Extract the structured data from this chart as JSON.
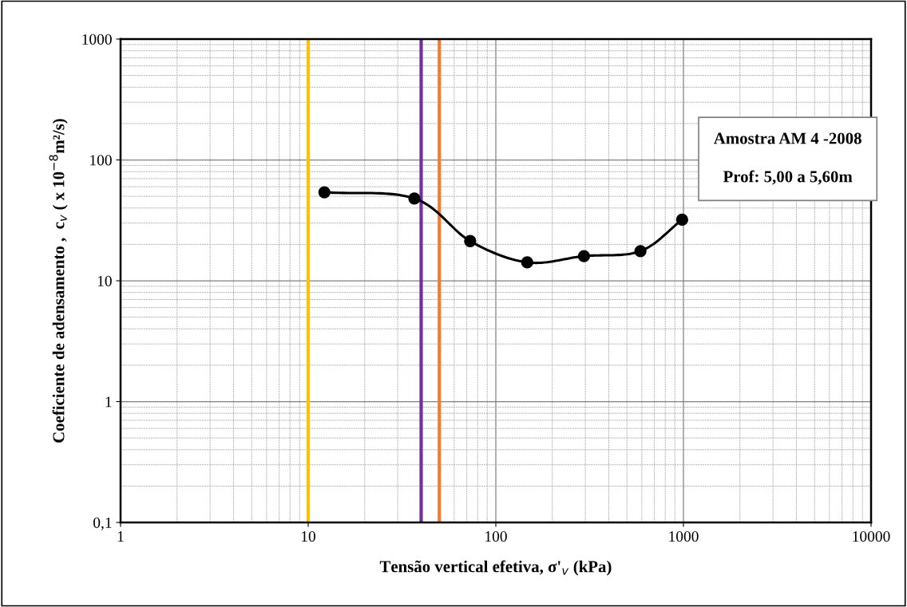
{
  "chart_data": {
    "type": "line",
    "xlabel": "Tensão vertical efetiva, σ'$_{v}$ (kPa)",
    "ylabel": "Coeficiente de adensamento ,  c$_{v}$ ( x 10$^{−8}$m²/s)",
    "log": "xy",
    "xlim": [
      1,
      10000
    ],
    "ylim": [
      0.1,
      1000
    ],
    "xticks": [
      1,
      10,
      100,
      1000,
      10000
    ],
    "yticks": [
      {
        "value": 0.1,
        "label": "0,1"
      },
      1,
      10,
      100,
      1000
    ],
    "grid": true,
    "marker": "circle",
    "line_style": "solid",
    "series": [
      {
        "color": "#000000",
        "x": [
          12.2,
          36.8,
          73,
          147,
          295,
          590,
          984
        ],
        "values": [
          54,
          48,
          21.3,
          14.2,
          16.0,
          17.6,
          32
        ]
      }
    ],
    "ref_lines": [
      {
        "axis": "x",
        "value": 10,
        "color": "#ffc000"
      },
      {
        "axis": "x",
        "value": 40,
        "color": "#7030a0"
      },
      {
        "axis": "x",
        "value": 50,
        "color": "#ed7d31"
      }
    ],
    "annotations": [
      "Amostra AM 4 -2008\n\nProf: 5,00 a 5,60m"
    ]
  }
}
